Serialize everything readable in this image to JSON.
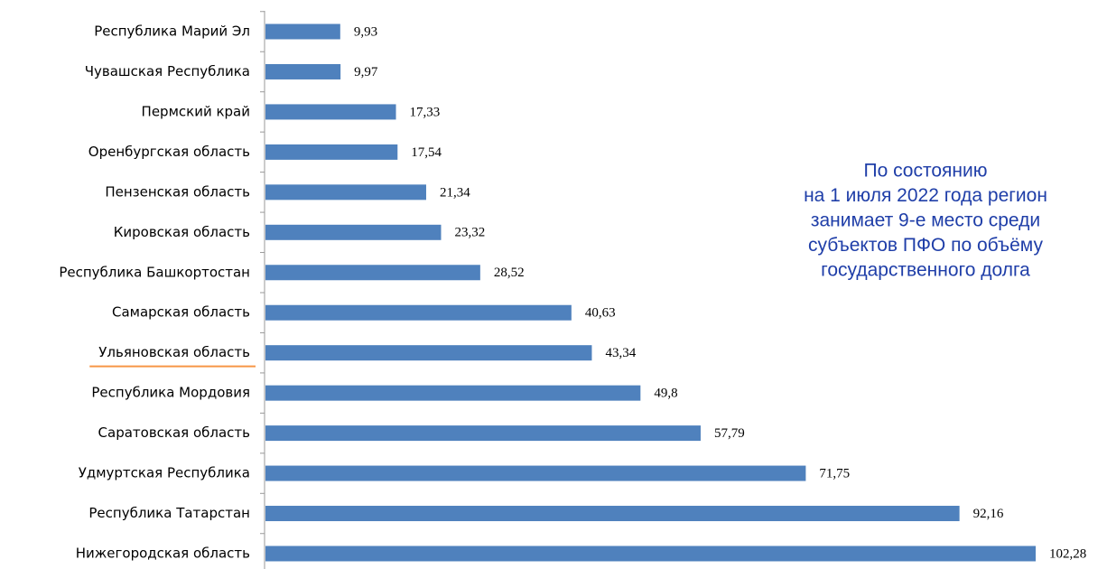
{
  "chart_data": {
    "type": "barh",
    "categories": [
      "Республика Марий Эл",
      "Чувашская Республика",
      "Пермский край",
      "Оренбургская область",
      "Пензенская область",
      "Кировская область",
      "Республика Башкортостан",
      "Самарская область",
      "Ульяновская область",
      "Республика Мордовия",
      "Саратовская область",
      "Удмуртская Республика",
      "Республика Татарстан",
      "Нижегородская область"
    ],
    "values": [
      9.93,
      9.97,
      17.33,
      17.54,
      21.34,
      23.32,
      28.52,
      40.63,
      43.34,
      49.8,
      57.79,
      71.75,
      92.16,
      102.28
    ],
    "value_labels": [
      "9,93",
      "9,97",
      "17,33",
      "17,54",
      "21,34",
      "23,32",
      "28,52",
      "40,63",
      "43,34",
      "49,8",
      "57,79",
      "71,75",
      "92,16",
      "102,28"
    ],
    "color": "#4f81bd",
    "xlim": [
      0,
      110
    ],
    "highlight": 8,
    "highlight_color": "#f79646",
    "annotation": [
      "По состоянию",
      "на 1 июля 2022 года регион",
      "занимает 9-е место среди",
      "субъектов ПФО по объёму",
      "государственного долга"
    ],
    "annotation_color": "#1f3ea8"
  }
}
